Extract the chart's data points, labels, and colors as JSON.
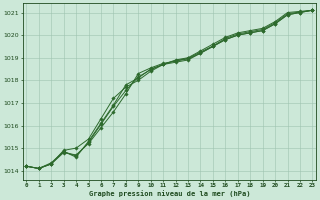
{
  "x": [
    0,
    1,
    2,
    3,
    4,
    5,
    6,
    7,
    8,
    9,
    10,
    11,
    12,
    13,
    14,
    15,
    16,
    17,
    18,
    19,
    20,
    21,
    22,
    23
  ],
  "line1": [
    1014.2,
    1014.1,
    1014.3,
    1014.9,
    1015.0,
    1015.4,
    1016.3,
    1017.2,
    1017.7,
    1018.0,
    1018.4,
    1018.7,
    1018.9,
    1019.0,
    1019.3,
    1019.6,
    1019.9,
    1020.1,
    1020.2,
    1020.3,
    1020.6,
    1021.0,
    1021.05,
    1021.1
  ],
  "line2": [
    1014.2,
    1014.1,
    1014.3,
    1014.8,
    1014.7,
    1015.2,
    1015.9,
    1016.6,
    1017.4,
    1018.3,
    1018.55,
    1018.75,
    1018.85,
    1018.95,
    1019.2,
    1019.5,
    1019.8,
    1020.0,
    1020.1,
    1020.2,
    1020.5,
    1020.9,
    1021.0,
    1021.1
  ],
  "line3": [
    1014.2,
    1014.1,
    1014.35,
    1014.85,
    1014.65,
    1015.25,
    1016.05,
    1016.85,
    1017.55,
    1018.15,
    1018.47,
    1018.7,
    1018.87,
    1018.97,
    1019.25,
    1019.52,
    1019.85,
    1020.05,
    1020.15,
    1020.25,
    1020.55,
    1020.95,
    1021.02,
    1021.1
  ],
  "line4": [
    1014.2,
    1014.1,
    1014.3,
    1014.85,
    1014.6,
    1015.3,
    1016.1,
    1016.9,
    1017.8,
    1018.1,
    1018.5,
    1018.7,
    1018.8,
    1018.9,
    1019.2,
    1019.5,
    1019.8,
    1020.0,
    1020.1,
    1020.2,
    1020.5,
    1020.9,
    1021.0,
    1021.1
  ],
  "line_colors": [
    "#2d6a2d",
    "#2d6a2d",
    "#2d6a2d",
    "#2d6a2d"
  ],
  "marker": "D",
  "marker_size": 1.8,
  "marker_linewidth": 0.3,
  "line_width": 0.7,
  "background_color": "#cce8d8",
  "grid_color": "#9ec4b0",
  "text_color": "#1e4a1e",
  "title": "Graphe pression niveau de la mer (hPa)",
  "xlabel_ticks": [
    "0",
    "1",
    "2",
    "3",
    "4",
    "5",
    "6",
    "7",
    "8",
    "9",
    "10",
    "11",
    "12",
    "13",
    "14",
    "15",
    "16",
    "17",
    "18",
    "19",
    "20",
    "21",
    "22",
    "23"
  ],
  "ylim": [
    1013.6,
    1021.4
  ],
  "yticks": [
    1014,
    1015,
    1016,
    1017,
    1018,
    1019,
    1020,
    1021
  ],
  "xlim": [
    -0.3,
    23.3
  ]
}
